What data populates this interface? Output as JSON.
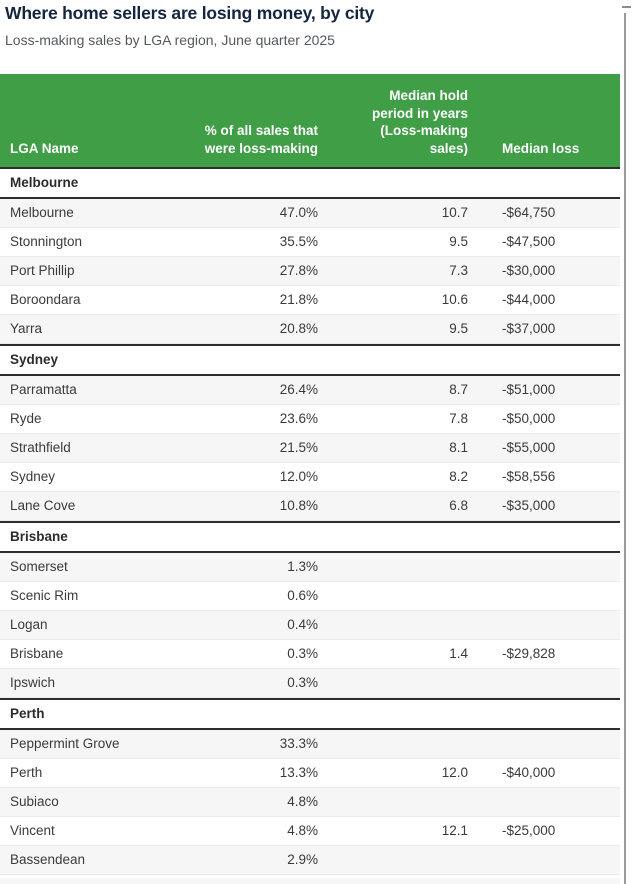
{
  "title": "Where home sellers are losing money, by city",
  "subtitle": "Loss-making sales by LGA region, June quarter 2025",
  "chart_data": {
    "type": "table",
    "columns": [
      "LGA Name",
      "% of all sales that were loss-making",
      "Median hold period in years (Loss-making sales)",
      "Median loss"
    ],
    "sections": [
      {
        "group": "Melbourne",
        "rows": [
          [
            "Melbourne",
            "47.0%",
            "10.7",
            "-$64,750"
          ],
          [
            "Stonnington",
            "35.5%",
            "9.5",
            "-$47,500"
          ],
          [
            "Port Phillip",
            "27.8%",
            "7.3",
            "-$30,000"
          ],
          [
            "Boroondara",
            "21.8%",
            "10.6",
            "-$44,000"
          ],
          [
            "Yarra",
            "20.8%",
            "9.5",
            "-$37,000"
          ]
        ]
      },
      {
        "group": "Sydney",
        "rows": [
          [
            "Parramatta",
            "26.4%",
            "8.7",
            "-$51,000"
          ],
          [
            "Ryde",
            "23.6%",
            "7.8",
            "-$50,000"
          ],
          [
            "Strathfield",
            "21.5%",
            "8.1",
            "-$55,000"
          ],
          [
            "Sydney",
            "12.0%",
            "8.2",
            "-$58,556"
          ],
          [
            "Lane Cove",
            "10.8%",
            "6.8",
            "-$35,000"
          ]
        ]
      },
      {
        "group": "Brisbane",
        "rows": [
          [
            "Somerset",
            "1.3%",
            "",
            ""
          ],
          [
            "Scenic Rim",
            "0.6%",
            "",
            ""
          ],
          [
            "Logan",
            "0.4%",
            "",
            ""
          ],
          [
            "Brisbane",
            "0.3%",
            "1.4",
            "-$29,828"
          ],
          [
            "Ipswich",
            "0.3%",
            "",
            ""
          ]
        ]
      },
      {
        "group": "Perth",
        "rows": [
          [
            "Peppermint Grove",
            "33.3%",
            "",
            ""
          ],
          [
            "Perth",
            "13.3%",
            "12.0",
            "-$40,000"
          ],
          [
            "Subiaco",
            "4.8%",
            "",
            ""
          ],
          [
            "Vincent",
            "4.8%",
            "12.1",
            "-$25,000"
          ],
          [
            "Bassendean",
            "2.9%",
            "",
            ""
          ]
        ]
      }
    ]
  },
  "colors": {
    "header_green": "#3f9e46",
    "title_navy": "#14263f",
    "subtitle_gray": "#55595c",
    "row_alt_gray": "#f6f6f6",
    "section_border_dark": "#2d2d2d",
    "body_text": "#3a3a3a"
  }
}
